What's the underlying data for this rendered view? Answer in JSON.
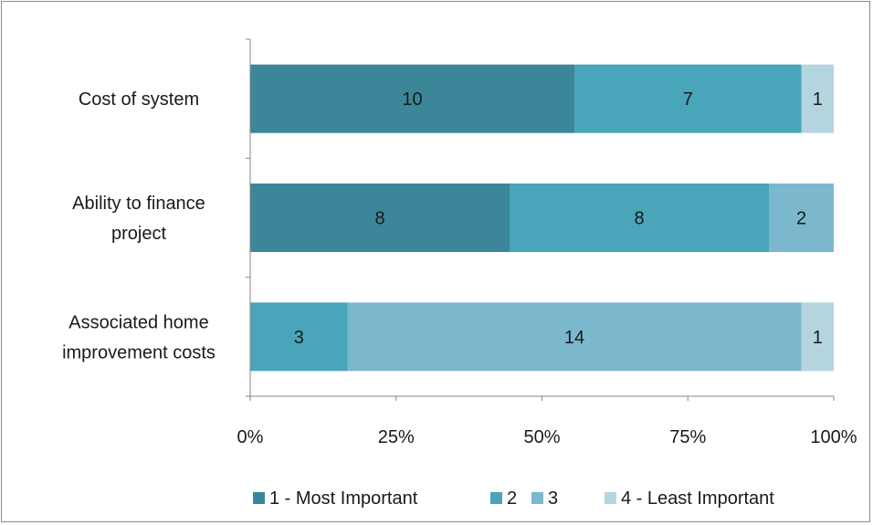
{
  "chart_data": {
    "type": "bar",
    "orientation": "horizontal",
    "stacking": "percent",
    "categories": [
      [
        "Cost of system"
      ],
      [
        "Ability to finance",
        "project"
      ],
      [
        "Associated home",
        "improvement costs"
      ]
    ],
    "series": [
      {
        "name": "1 - Most Important",
        "color": "#3b8799",
        "values": [
          10,
          8,
          0
        ]
      },
      {
        "name": "2",
        "color": "#48a5ba",
        "values": [
          7,
          8,
          3
        ]
      },
      {
        "name": "3",
        "color": "#7bb8cd",
        "values": [
          0,
          2,
          14
        ]
      },
      {
        "name": "4 - Least Important",
        "color": "#b4d4e0",
        "values": [
          1,
          0,
          1
        ]
      }
    ],
    "x_ticks": [
      "0%",
      "25%",
      "50%",
      "75%",
      "100%"
    ],
    "xlim": [
      0,
      100
    ],
    "grid": false,
    "legend_position": "bottom"
  }
}
